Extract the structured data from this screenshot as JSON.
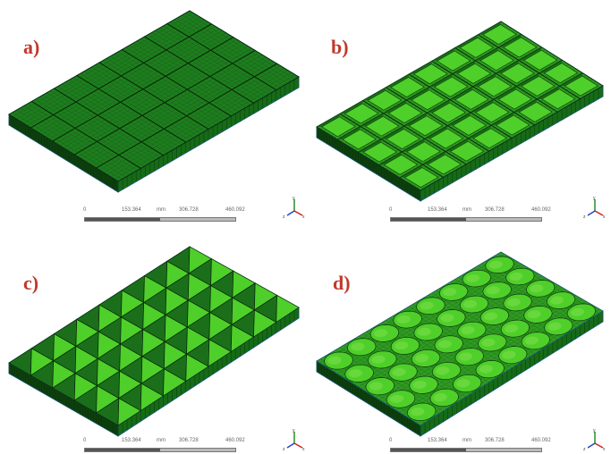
{
  "panels": [
    {
      "label": "a)",
      "type": "square-cells"
    },
    {
      "label": "b)",
      "type": "square-cells-open"
    },
    {
      "label": "c)",
      "type": "triangular-cells"
    },
    {
      "label": "d)",
      "type": "circular-cells"
    }
  ],
  "scale": {
    "ticks": [
      "0",
      "153.364",
      "306.728",
      "460.092"
    ],
    "unit": "mm"
  },
  "triad": {
    "x": "x",
    "y": "y",
    "z": "z"
  },
  "colors": {
    "mesh_fill": "#1f8a1f",
    "mesh_light": "#4fcf2a",
    "mesh_dark": "#0d3f0d",
    "edge": "#1a5f8a",
    "label": "#c0392b"
  }
}
